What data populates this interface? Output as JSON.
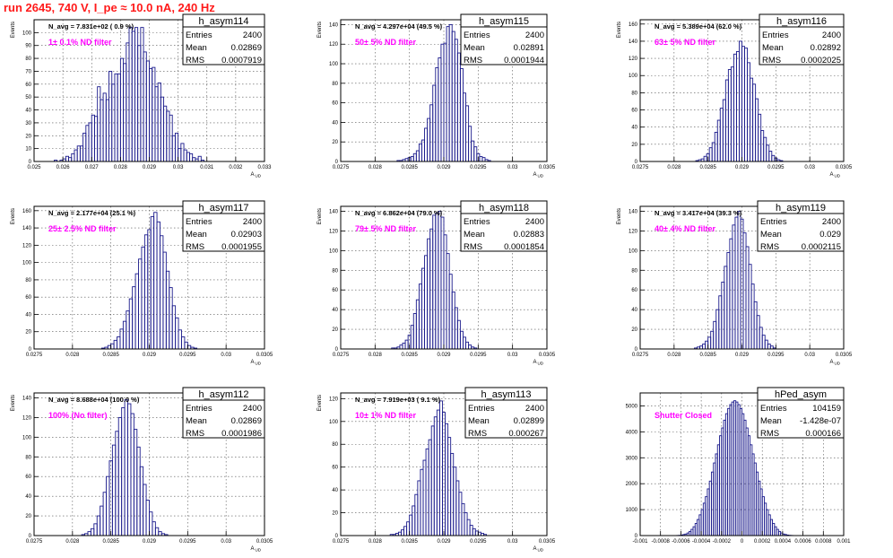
{
  "canvas_title": "run 2645,   740 V, I_pe ≈ 10.0 nA, 240 Hz",
  "colors": {
    "histogram": "#1a1a8c",
    "annotation": "#ff00ff",
    "title": "#ff1a1a",
    "grid": "#555555",
    "frame": "#000000"
  },
  "chart_data": [
    {
      "type": "bar",
      "name": "h_asym114",
      "entries": "2400",
      "mean": "0.02869",
      "rms": "0.0007919",
      "navg": "N_avg = 7.831e+02 ( 0.9 %)",
      "label": "1± 0.1% ND filter",
      "xlabel": "A_UD",
      "ylabel": "Events",
      "xlim": [
        0.025,
        0.033
      ],
      "ylim": [
        0,
        110
      ],
      "xticks": [
        0.025,
        0.026,
        0.027,
        0.028,
        0.029,
        0.03,
        0.031,
        0.032,
        0.033
      ],
      "xticklabels": [
        "0.025",
        "0.026",
        "0.027",
        "0.028",
        "0.029",
        "0.03",
        "0.031",
        "0.032",
        "0.033"
      ],
      "yticks": [
        0,
        10,
        20,
        30,
        40,
        50,
        60,
        70,
        80,
        90,
        100
      ],
      "bins": {
        "start": 0.0257,
        "width": 0.0001,
        "values": [
          1,
          0,
          1,
          2,
          4,
          3,
          6,
          9,
          12,
          12,
          22,
          28,
          30,
          36,
          35,
          58,
          48,
          53,
          48,
          70,
          60,
          68,
          68,
          80,
          76,
          92,
          104,
          101,
          104,
          90,
          104,
          85,
          78,
          72,
          73,
          58,
          61,
          50,
          43,
          39,
          36,
          20,
          22,
          10,
          14,
          9,
          7,
          6,
          3,
          2,
          4,
          1
        ]
      }
    },
    {
      "type": "bar",
      "name": "h_asym115",
      "entries": "2400",
      "mean": "0.02891",
      "rms": "0.0001944",
      "navg": "N_avg = 4.297e+04 (49.5 %)",
      "label": "50± 5% ND filter",
      "xlabel": "A_UD",
      "ylabel": "Events",
      "xlim": [
        0.0275,
        0.0305
      ],
      "ylim": [
        0,
        145
      ],
      "xticks": [
        0.0275,
        0.028,
        0.0285,
        0.029,
        0.0295,
        0.03,
        0.0305
      ],
      "xticklabels": [
        "0.0275",
        "0.028",
        "0.0285",
        "0.029",
        "0.0295",
        "0.03",
        "0.0305"
      ],
      "yticks": [
        0,
        20,
        40,
        60,
        80,
        100,
        120,
        140
      ],
      "bins": {
        "start": 0.02832,
        "width": 4e-05,
        "values": [
          1,
          1,
          2,
          3,
          4,
          5,
          8,
          11,
          18,
          22,
          34,
          44,
          58,
          78,
          96,
          106,
          120,
          121,
          138,
          140,
          133,
          125,
          111,
          95,
          70,
          57,
          36,
          21,
          15,
          8,
          5,
          4,
          2,
          1
        ]
      }
    },
    {
      "type": "bar",
      "name": "h_asym116",
      "entries": "2400",
      "mean": "0.02892",
      "rms": "0.0002025",
      "navg": "N_avg = 5.389e+04 (62.0 %)",
      "label": "63± 5% ND filter",
      "xlabel": "A_UD",
      "ylabel": "Events",
      "xlim": [
        0.0275,
        0.0305
      ],
      "ylim": [
        0,
        165
      ],
      "xticks": [
        0.0275,
        0.028,
        0.0285,
        0.029,
        0.0295,
        0.03,
        0.0305
      ],
      "xticklabels": [
        "0.0275",
        "0.028",
        "0.0285",
        "0.029",
        "0.0295",
        "0.03",
        "0.0305"
      ],
      "yticks": [
        0,
        20,
        40,
        60,
        80,
        100,
        120,
        140,
        160
      ],
      "bins": {
        "start": 0.02832,
        "width": 4e-05,
        "values": [
          1,
          2,
          3,
          6,
          9,
          16,
          22,
          34,
          48,
          62,
          72,
          95,
          107,
          110,
          125,
          128,
          140,
          134,
          132,
          115,
          97,
          90,
          73,
          55,
          36,
          28,
          19,
          12,
          7,
          4,
          2,
          1
        ]
      }
    },
    {
      "type": "bar",
      "name": "h_asym117",
      "entries": "2400",
      "mean": "0.02903",
      "rms": "0.0001955",
      "navg": "N_avg = 2.177e+04 (25.1 %)",
      "label": "25± 2.5% ND filter",
      "xlabel": "A_UD",
      "ylabel": "Events",
      "xlim": [
        0.0275,
        0.0305
      ],
      "ylim": [
        0,
        165
      ],
      "xticks": [
        0.0275,
        0.028,
        0.0285,
        0.029,
        0.0295,
        0.03,
        0.0305
      ],
      "xticklabels": [
        "0.0275",
        "0.028",
        "0.0285",
        "0.029",
        "0.0295",
        "0.03",
        "0.0305"
      ],
      "yticks": [
        0,
        20,
        40,
        60,
        80,
        100,
        120,
        140,
        160
      ],
      "bins": {
        "start": 0.02838,
        "width": 4e-05,
        "values": [
          1,
          2,
          4,
          6,
          10,
          14,
          23,
          32,
          44,
          58,
          72,
          87,
          104,
          118,
          132,
          138,
          153,
          158,
          147,
          131,
          112,
          90,
          71,
          50,
          36,
          22,
          14,
          8,
          4,
          2,
          1
        ]
      }
    },
    {
      "type": "bar",
      "name": "h_asym118",
      "entries": "2400",
      "mean": "0.02883",
      "rms": "0.0001854",
      "navg": "N_avg = 6.862e+04 (79.0 %)",
      "label": "79± 5% ND filter",
      "xlabel": "A_UD",
      "ylabel": "Events",
      "xlim": [
        0.0275,
        0.0305
      ],
      "ylim": [
        0,
        145
      ],
      "xticks": [
        0.0275,
        0.028,
        0.0285,
        0.029,
        0.0295,
        0.03,
        0.0305
      ],
      "xticklabels": [
        "0.0275",
        "0.028",
        "0.0285",
        "0.029",
        "0.0295",
        "0.03",
        "0.0305"
      ],
      "yticks": [
        0,
        20,
        40,
        60,
        80,
        100,
        120,
        140
      ],
      "bins": {
        "start": 0.02824,
        "width": 4e-05,
        "values": [
          1,
          1,
          2,
          4,
          6,
          9,
          14,
          24,
          36,
          50,
          66,
          82,
          95,
          112,
          122,
          136,
          138,
          140,
          134,
          116,
          97,
          76,
          58,
          42,
          29,
          18,
          12,
          7,
          4,
          2,
          1
        ]
      }
    },
    {
      "type": "bar",
      "name": "h_asym119",
      "entries": "2400",
      "mean": "0.029",
      "rms": "0.0002115",
      "navg": "N_avg = 3.417e+04 (39.3 %)",
      "label": "40± 4% ND filter",
      "xlabel": "A_UD",
      "ylabel": "Events",
      "xlim": [
        0.0275,
        0.0305
      ],
      "ylim": [
        0,
        145
      ],
      "xticks": [
        0.0275,
        0.028,
        0.0285,
        0.029,
        0.0295,
        0.03,
        0.0305
      ],
      "xticklabels": [
        "0.0275",
        "0.028",
        "0.0285",
        "0.029",
        "0.0295",
        "0.03",
        "0.0305"
      ],
      "yticks": [
        0,
        20,
        40,
        60,
        80,
        100,
        120,
        140
      ],
      "bins": {
        "start": 0.0283,
        "width": 4e-05,
        "values": [
          1,
          2,
          3,
          5,
          8,
          12,
          18,
          28,
          40,
          54,
          68,
          84,
          98,
          112,
          126,
          134,
          140,
          132,
          118,
          104,
          86,
          66,
          48,
          34,
          22,
          14,
          9,
          5,
          3,
          1
        ]
      }
    },
    {
      "type": "bar",
      "name": "h_asym112",
      "entries": "2400",
      "mean": "0.02869",
      "rms": "0.0001986",
      "navg": "N_avg = 8.688e+04 (100.0 %)",
      "label": "100% (No filter)",
      "xlabel": "A_UD",
      "ylabel": "Events",
      "xlim": [
        0.0275,
        0.0305
      ],
      "ylim": [
        0,
        145
      ],
      "xticks": [
        0.0275,
        0.028,
        0.0285,
        0.029,
        0.0295,
        0.03,
        0.0305
      ],
      "xticklabels": [
        "0.0275",
        "0.028",
        "0.0285",
        "0.029",
        "0.0295",
        "0.03",
        "0.0305"
      ],
      "yticks": [
        0,
        20,
        40,
        60,
        80,
        100,
        120,
        140
      ],
      "bins": {
        "start": 0.02812,
        "width": 4e-05,
        "values": [
          1,
          2,
          4,
          7,
          12,
          20,
          30,
          44,
          60,
          76,
          92,
          106,
          120,
          130,
          138,
          134,
          124,
          108,
          90,
          70,
          52,
          36,
          24,
          14,
          8,
          4,
          2,
          1
        ]
      }
    },
    {
      "type": "bar",
      "name": "h_asym113",
      "entries": "2400",
      "mean": "0.02899",
      "rms": "0.000267",
      "navg": "N_avg = 7.919e+03 ( 9.1 %)",
      "label": "10± 1% ND filter",
      "xlabel": "A_UD",
      "ylabel": "Events",
      "xlim": [
        0.0275,
        0.0305
      ],
      "ylim": [
        0,
        125
      ],
      "xticks": [
        0.0275,
        0.028,
        0.0285,
        0.029,
        0.0295,
        0.03,
        0.0305
      ],
      "xticklabels": [
        "0.0275",
        "0.028",
        "0.0285",
        "0.029",
        "0.0295",
        "0.03",
        "0.0305"
      ],
      "yticks": [
        0,
        20,
        40,
        60,
        80,
        100,
        120
      ],
      "bins": {
        "start": 0.02822,
        "width": 4e-05,
        "values": [
          1,
          1,
          2,
          3,
          5,
          8,
          12,
          18,
          26,
          36,
          48,
          58,
          66,
          76,
          84,
          96,
          104,
          110,
          118,
          108,
          98,
          86,
          72,
          60,
          48,
          38,
          28,
          20,
          14,
          9,
          6,
          4,
          3,
          2,
          1
        ]
      }
    },
    {
      "type": "bar",
      "name": "hPed_asym",
      "entries": "104159",
      "mean": "-1.428e-07",
      "rms": "0.000166",
      "navg": "",
      "label": "Shutter Closed",
      "xlabel": "",
      "ylabel": "",
      "xlim": [
        -0.001,
        0.001
      ],
      "ylim": [
        0,
        5500
      ],
      "xticks": [
        -0.001,
        -0.0008,
        -0.0006,
        -0.0004,
        -0.0002,
        0,
        0.0002,
        0.0004,
        0.0006,
        0.0008,
        0.001
      ],
      "xticklabels": [
        "-0.001",
        "-0.0008",
        "-0.0006",
        "-0.0004",
        "-0.0002",
        "0",
        "0.0002",
        "0.0004",
        "0.0006",
        "0.0008",
        "0.001"
      ],
      "yticks": [
        0,
        1000,
        2000,
        3000,
        4000,
        5000
      ],
      "yticklabels": [
        "0",
        "1000",
        "2000",
        "3000",
        "4000",
        "5000"
      ],
      "bins": {
        "start": -0.00064,
        "width": 2e-05,
        "values": [
          5,
          10,
          20,
          40,
          60,
          100,
          160,
          240,
          340,
          470,
          620,
          800,
          1000,
          1250,
          1500,
          1800,
          2100,
          2450,
          2800,
          3150,
          3500,
          3850,
          4150,
          4450,
          4700,
          4900,
          5050,
          5150,
          5200,
          5150,
          5050,
          4900,
          4700,
          4450,
          4150,
          3850,
          3500,
          3150,
          2800,
          2450,
          2100,
          1800,
          1500,
          1250,
          1000,
          800,
          620,
          470,
          340,
          240,
          160,
          100,
          60,
          40,
          20,
          10,
          5
        ]
      }
    }
  ]
}
